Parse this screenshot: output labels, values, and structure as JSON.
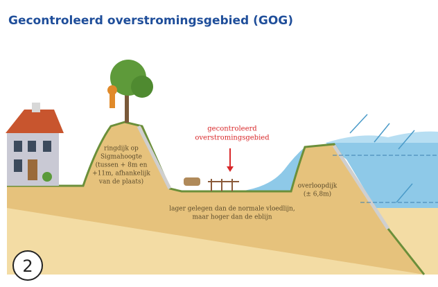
{
  "title": "Gecontroleerd overstromingsgebied (GOG)",
  "labels": {
    "ringdijk": [
      "ringdijk op",
      "Sigmahoogte",
      "(tussen + 8m en",
      "+11m, afhankelijk",
      "van de plaats)"
    ],
    "gog": [
      "gecontroleerd",
      "overstromingsgebied"
    ],
    "lager": [
      "lager gelegen dan de normale vloedlijn,",
      "maar hoger dan de eblijn"
    ],
    "overloopdijk": [
      "overloopdijk",
      "(± 6,8m)"
    ]
  },
  "step": "2"
}
